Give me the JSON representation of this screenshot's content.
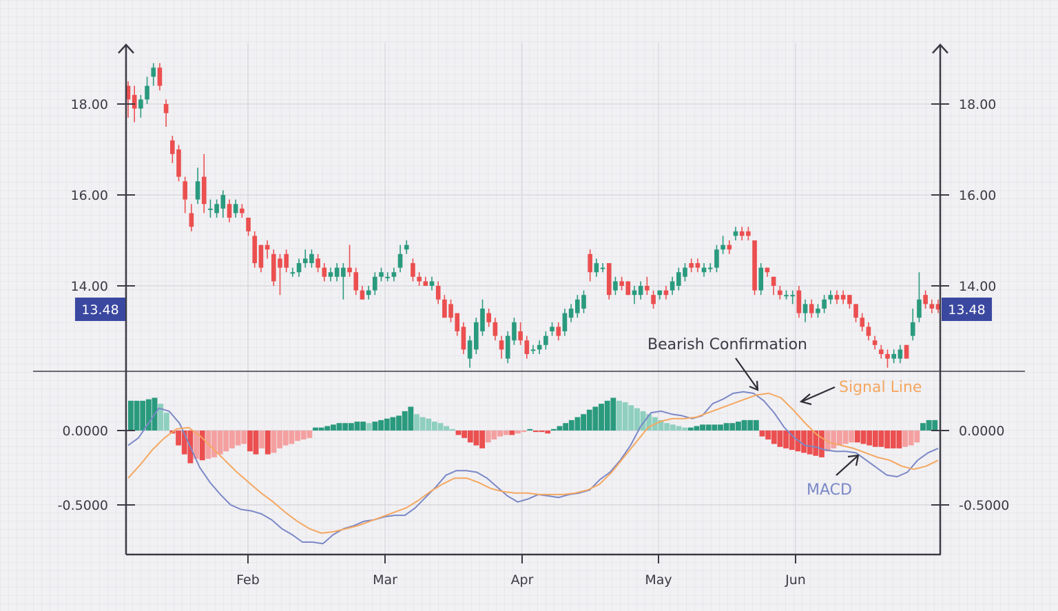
{
  "chart_data": [
    {
      "type": "candlestick",
      "title": "",
      "xlabel": "",
      "ylabel": "",
      "ylim": [
        12.0,
        19.2
      ],
      "y_ticks": [
        "18.00",
        "16.00",
        "14.00"
      ],
      "x_ticks": [
        "Feb",
        "Mar",
        "Apr",
        "May",
        "Jun"
      ],
      "last_price_label": "13.48",
      "grid": true,
      "candles": [
        {
          "o": 18.4,
          "c": 18.1,
          "h": 18.5,
          "l": 17.7
        },
        {
          "o": 18.2,
          "c": 17.9,
          "h": 18.4,
          "l": 17.6
        },
        {
          "o": 17.9,
          "c": 18.1,
          "h": 18.2,
          "l": 17.7
        },
        {
          "o": 18.1,
          "c": 18.4,
          "h": 18.6,
          "l": 18.0
        },
        {
          "o": 18.6,
          "c": 18.8,
          "h": 18.9,
          "l": 18.4
        },
        {
          "o": 18.8,
          "c": 18.4,
          "h": 18.9,
          "l": 18.3
        },
        {
          "o": 18.0,
          "c": 17.8,
          "h": 18.1,
          "l": 17.5
        },
        {
          "o": 17.2,
          "c": 16.9,
          "h": 17.3,
          "l": 16.7
        },
        {
          "o": 17.0,
          "c": 16.4,
          "h": 17.1,
          "l": 16.3
        },
        {
          "o": 16.3,
          "c": 15.9,
          "h": 16.4,
          "l": 15.6
        },
        {
          "o": 15.6,
          "c": 15.3,
          "h": 15.8,
          "l": 15.2
        },
        {
          "o": 15.9,
          "c": 16.3,
          "h": 16.6,
          "l": 15.8
        },
        {
          "o": 16.4,
          "c": 15.8,
          "h": 16.9,
          "l": 15.6
        },
        {
          "o": 15.7,
          "c": 15.7,
          "h": 15.9,
          "l": 15.5
        },
        {
          "o": 15.6,
          "c": 15.8,
          "h": 15.9,
          "l": 15.5
        },
        {
          "o": 15.7,
          "c": 16.0,
          "h": 16.1,
          "l": 15.5
        },
        {
          "o": 15.8,
          "c": 15.5,
          "h": 15.9,
          "l": 15.4
        },
        {
          "o": 15.6,
          "c": 15.8,
          "h": 15.9,
          "l": 15.5
        },
        {
          "o": 15.7,
          "c": 15.6,
          "h": 15.8,
          "l": 15.5
        },
        {
          "o": 15.5,
          "c": 15.2,
          "h": 15.5,
          "l": 15.1
        },
        {
          "o": 15.1,
          "c": 14.5,
          "h": 15.2,
          "l": 14.4
        },
        {
          "o": 14.9,
          "c": 14.4,
          "h": 14.9,
          "l": 14.3
        },
        {
          "o": 14.9,
          "c": 14.8,
          "h": 15.0,
          "l": 14.6
        },
        {
          "o": 14.7,
          "c": 14.1,
          "h": 14.8,
          "l": 14.0
        },
        {
          "o": 14.6,
          "c": 14.4,
          "h": 14.7,
          "l": 13.8
        },
        {
          "o": 14.7,
          "c": 14.4,
          "h": 14.8,
          "l": 14.3
        },
        {
          "o": 14.3,
          "c": 14.3,
          "h": 14.4,
          "l": 14.2
        },
        {
          "o": 14.3,
          "c": 14.5,
          "h": 14.6,
          "l": 14.2
        },
        {
          "o": 14.5,
          "c": 14.6,
          "h": 14.8,
          "l": 14.4
        },
        {
          "o": 14.5,
          "c": 14.7,
          "h": 14.8,
          "l": 14.4
        },
        {
          "o": 14.6,
          "c": 14.4,
          "h": 14.7,
          "l": 14.3
        },
        {
          "o": 14.4,
          "c": 14.2,
          "h": 14.5,
          "l": 14.1
        },
        {
          "o": 14.2,
          "c": 14.3,
          "h": 14.4,
          "l": 14.1
        },
        {
          "o": 14.2,
          "c": 14.4,
          "h": 14.5,
          "l": 14.1
        },
        {
          "o": 14.2,
          "c": 14.4,
          "h": 14.5,
          "l": 13.7
        },
        {
          "o": 14.4,
          "c": 14.3,
          "h": 14.9,
          "l": 14.2
        },
        {
          "o": 14.3,
          "c": 13.9,
          "h": 14.4,
          "l": 13.8
        },
        {
          "o": 13.9,
          "c": 13.7,
          "h": 14.0,
          "l": 13.7
        },
        {
          "o": 13.8,
          "c": 13.9,
          "h": 14.0,
          "l": 13.7
        },
        {
          "o": 13.9,
          "c": 14.2,
          "h": 14.3,
          "l": 13.8
        },
        {
          "o": 14.2,
          "c": 14.3,
          "h": 14.4,
          "l": 14.1
        },
        {
          "o": 14.2,
          "c": 14.2,
          "h": 14.3,
          "l": 14.1
        },
        {
          "o": 14.2,
          "c": 14.3,
          "h": 14.4,
          "l": 14.1
        },
        {
          "o": 14.4,
          "c": 14.7,
          "h": 14.9,
          "l": 14.3
        },
        {
          "o": 14.8,
          "c": 14.9,
          "h": 15.0,
          "l": 14.7
        },
        {
          "o": 14.5,
          "c": 14.2,
          "h": 14.6,
          "l": 14.1
        },
        {
          "o": 14.2,
          "c": 14.1,
          "h": 14.3,
          "l": 14.0
        },
        {
          "o": 14.1,
          "c": 14.0,
          "h": 14.2,
          "l": 14.0
        },
        {
          "o": 14.0,
          "c": 14.1,
          "h": 14.2,
          "l": 13.9
        },
        {
          "o": 14.0,
          "c": 13.7,
          "h": 14.1,
          "l": 13.6
        },
        {
          "o": 13.7,
          "c": 13.3,
          "h": 13.8,
          "l": 13.3
        },
        {
          "o": 13.6,
          "c": 13.3,
          "h": 13.7,
          "l": 13.2
        },
        {
          "o": 13.4,
          "c": 13.0,
          "h": 13.4,
          "l": 12.9
        },
        {
          "o": 13.1,
          "c": 12.6,
          "h": 13.2,
          "l": 12.5
        },
        {
          "o": 12.4,
          "c": 12.8,
          "h": 12.9,
          "l": 12.2
        },
        {
          "o": 12.6,
          "c": 13.2,
          "h": 13.3,
          "l": 12.5
        },
        {
          "o": 13.0,
          "c": 13.5,
          "h": 13.7,
          "l": 12.9
        },
        {
          "o": 13.4,
          "c": 13.2,
          "h": 13.5,
          "l": 13.1
        },
        {
          "o": 13.2,
          "c": 12.9,
          "h": 13.3,
          "l": 12.8
        },
        {
          "o": 12.8,
          "c": 12.6,
          "h": 12.9,
          "l": 12.4
        },
        {
          "o": 12.4,
          "c": 12.9,
          "h": 13.0,
          "l": 12.3
        },
        {
          "o": 12.8,
          "c": 13.2,
          "h": 13.3,
          "l": 12.7
        },
        {
          "o": 13.0,
          "c": 12.8,
          "h": 13.2,
          "l": 12.7
        },
        {
          "o": 12.8,
          "c": 12.5,
          "h": 12.9,
          "l": 12.4
        },
        {
          "o": 12.6,
          "c": 12.6,
          "h": 12.7,
          "l": 12.5
        },
        {
          "o": 12.6,
          "c": 12.7,
          "h": 12.8,
          "l": 12.5
        },
        {
          "o": 12.7,
          "c": 12.9,
          "h": 13.0,
          "l": 12.6
        },
        {
          "o": 13.0,
          "c": 13.1,
          "h": 13.2,
          "l": 12.9
        },
        {
          "o": 13.1,
          "c": 12.9,
          "h": 13.2,
          "l": 12.8
        },
        {
          "o": 13.0,
          "c": 13.4,
          "h": 13.5,
          "l": 12.9
        },
        {
          "o": 13.3,
          "c": 13.5,
          "h": 13.6,
          "l": 13.2
        },
        {
          "o": 13.4,
          "c": 13.7,
          "h": 13.8,
          "l": 13.3
        },
        {
          "o": 13.5,
          "c": 13.8,
          "h": 13.9,
          "l": 13.4
        },
        {
          "o": 14.7,
          "c": 14.3,
          "h": 14.8,
          "l": 14.1
        },
        {
          "o": 14.3,
          "c": 14.5,
          "h": 14.6,
          "l": 14.2
        },
        {
          "o": 14.4,
          "c": 14.4,
          "h": 14.5,
          "l": 14.3
        },
        {
          "o": 14.5,
          "c": 13.8,
          "h": 14.5,
          "l": 13.7
        },
        {
          "o": 13.9,
          "c": 14.1,
          "h": 14.2,
          "l": 13.8
        },
        {
          "o": 14.1,
          "c": 14.0,
          "h": 14.2,
          "l": 13.9
        },
        {
          "o": 14.1,
          "c": 13.8,
          "h": 14.1,
          "l": 13.8
        },
        {
          "o": 13.8,
          "c": 13.9,
          "h": 14.0,
          "l": 13.6
        },
        {
          "o": 13.8,
          "c": 14.0,
          "h": 14.1,
          "l": 13.7
        },
        {
          "o": 14.0,
          "c": 13.9,
          "h": 14.2,
          "l": 13.8
        },
        {
          "o": 13.8,
          "c": 13.6,
          "h": 13.9,
          "l": 13.5
        },
        {
          "o": 13.8,
          "c": 13.9,
          "h": 13.9,
          "l": 13.7
        },
        {
          "o": 13.9,
          "c": 13.8,
          "h": 14.0,
          "l": 13.7
        },
        {
          "o": 13.9,
          "c": 14.1,
          "h": 14.2,
          "l": 13.8
        },
        {
          "o": 14.0,
          "c": 14.3,
          "h": 14.4,
          "l": 13.9
        },
        {
          "o": 14.2,
          "c": 14.4,
          "h": 14.5,
          "l": 14.1
        },
        {
          "o": 14.5,
          "c": 14.4,
          "h": 14.6,
          "l": 14.3
        },
        {
          "o": 14.5,
          "c": 14.4,
          "h": 14.6,
          "l": 14.3
        },
        {
          "o": 14.3,
          "c": 14.4,
          "h": 14.5,
          "l": 14.2
        },
        {
          "o": 14.4,
          "c": 14.4,
          "h": 14.5,
          "l": 14.3
        },
        {
          "o": 14.4,
          "c": 14.8,
          "h": 14.9,
          "l": 14.3
        },
        {
          "o": 14.8,
          "c": 14.9,
          "h": 15.1,
          "l": 14.7
        },
        {
          "o": 14.9,
          "c": 14.8,
          "h": 15.0,
          "l": 14.7
        },
        {
          "o": 15.1,
          "c": 15.2,
          "h": 15.3,
          "l": 15.0
        },
        {
          "o": 15.2,
          "c": 15.1,
          "h": 15.3,
          "l": 15.0
        },
        {
          "o": 15.2,
          "c": 15.1,
          "h": 15.3,
          "l": 15.0
        },
        {
          "o": 15.0,
          "c": 13.9,
          "h": 15.0,
          "l": 13.8
        },
        {
          "o": 13.9,
          "c": 14.4,
          "h": 14.5,
          "l": 13.8
        },
        {
          "o": 14.4,
          "c": 14.3,
          "h": 14.4,
          "l": 14.2
        },
        {
          "o": 14.2,
          "c": 14.0,
          "h": 14.2,
          "l": 13.8
        },
        {
          "o": 13.9,
          "c": 13.8,
          "h": 14.0,
          "l": 13.7
        },
        {
          "o": 13.8,
          "c": 13.8,
          "h": 13.9,
          "l": 13.7
        },
        {
          "o": 13.8,
          "c": 13.8,
          "h": 13.9,
          "l": 13.6
        },
        {
          "o": 13.9,
          "c": 13.4,
          "h": 14.0,
          "l": 13.3
        },
        {
          "o": 13.4,
          "c": 13.6,
          "h": 13.7,
          "l": 13.2
        },
        {
          "o": 13.6,
          "c": 13.4,
          "h": 13.7,
          "l": 13.3
        },
        {
          "o": 13.4,
          "c": 13.5,
          "h": 13.6,
          "l": 13.3
        },
        {
          "o": 13.5,
          "c": 13.7,
          "h": 13.8,
          "l": 13.4
        },
        {
          "o": 13.7,
          "c": 13.8,
          "h": 13.9,
          "l": 13.6
        },
        {
          "o": 13.8,
          "c": 13.7,
          "h": 13.9,
          "l": 13.6
        },
        {
          "o": 13.8,
          "c": 13.7,
          "h": 13.9,
          "l": 13.6
        },
        {
          "o": 13.8,
          "c": 13.6,
          "h": 13.8,
          "l": 13.5
        },
        {
          "o": 13.6,
          "c": 13.3,
          "h": 13.6,
          "l": 13.2
        },
        {
          "o": 13.3,
          "c": 13.1,
          "h": 13.4,
          "l": 13.0
        },
        {
          "o": 13.1,
          "c": 12.9,
          "h": 13.2,
          "l": 12.8
        },
        {
          "o": 12.8,
          "c": 12.7,
          "h": 12.9,
          "l": 12.6
        },
        {
          "o": 12.6,
          "c": 12.5,
          "h": 12.7,
          "l": 12.4
        },
        {
          "o": 12.5,
          "c": 12.4,
          "h": 12.6,
          "l": 12.2
        },
        {
          "o": 12.4,
          "c": 12.5,
          "h": 12.6,
          "l": 12.3
        },
        {
          "o": 12.4,
          "c": 12.6,
          "h": 12.7,
          "l": 12.3
        },
        {
          "o": 12.7,
          "c": 12.4,
          "h": 12.7,
          "l": 12.4
        },
        {
          "o": 12.9,
          "c": 13.2,
          "h": 13.5,
          "l": 12.8
        },
        {
          "o": 13.3,
          "c": 13.7,
          "h": 14.3,
          "l": 13.2
        },
        {
          "o": 13.8,
          "c": 13.6,
          "h": 13.9,
          "l": 13.5
        },
        {
          "o": 13.6,
          "c": 13.5,
          "h": 13.7,
          "l": 13.4
        },
        {
          "o": 13.6,
          "c": 13.48,
          "h": 13.7,
          "l": 13.4
        }
      ]
    },
    {
      "type": "macd",
      "title": "",
      "ylim": [
        -0.85,
        0.4
      ],
      "y_ticks": [
        "0.0000",
        "-0.5000"
      ],
      "y_tick_values": [
        0.0,
        -0.5
      ],
      "series": [
        {
          "name": "MACD",
          "color": "#7a88c6",
          "values": [
            -0.1,
            -0.05,
            0.05,
            0.15,
            0.13,
            0.05,
            -0.1,
            -0.25,
            -0.35,
            -0.43,
            -0.5,
            -0.53,
            -0.54,
            -0.56,
            -0.6,
            -0.66,
            -0.7,
            -0.75,
            -0.75,
            -0.76,
            -0.7,
            -0.66,
            -0.64,
            -0.61,
            -0.6,
            -0.58,
            -0.57,
            -0.57,
            -0.52,
            -0.45,
            -0.38,
            -0.3,
            -0.27,
            -0.27,
            -0.28,
            -0.32,
            -0.38,
            -0.44,
            -0.48,
            -0.46,
            -0.43,
            -0.44,
            -0.45,
            -0.43,
            -0.42,
            -0.4,
            -0.33,
            -0.28,
            -0.2,
            -0.1,
            0.03,
            0.12,
            0.13,
            0.11,
            0.1,
            0.08,
            0.1,
            0.18,
            0.21,
            0.25,
            0.26,
            0.25,
            0.2,
            0.12,
            0.02,
            -0.05,
            -0.1,
            -0.11,
            -0.13,
            -0.14,
            -0.14,
            -0.15,
            -0.2,
            -0.25,
            -0.3,
            -0.31,
            -0.28,
            -0.2,
            -0.15,
            -0.12
          ]
        },
        {
          "name": "Signal Line",
          "color": "#f4a760",
          "values": [
            -0.32,
            -0.23,
            -0.13,
            -0.05,
            0.01,
            0.02,
            -0.04,
            -0.12,
            -0.2,
            -0.28,
            -0.35,
            -0.42,
            -0.48,
            -0.55,
            -0.61,
            -0.66,
            -0.69,
            -0.68,
            -0.66,
            -0.64,
            -0.61,
            -0.58,
            -0.55,
            -0.52,
            -0.47,
            -0.41,
            -0.36,
            -0.32,
            -0.32,
            -0.35,
            -0.39,
            -0.41,
            -0.42,
            -0.42,
            -0.43,
            -0.43,
            -0.43,
            -0.42,
            -0.4,
            -0.36,
            -0.28,
            -0.18,
            -0.08,
            0.02,
            0.06,
            0.08,
            0.08,
            0.09,
            0.12,
            0.15,
            0.18,
            0.21,
            0.24,
            0.25,
            0.22,
            0.14,
            0.05,
            -0.03,
            -0.08,
            -0.1,
            -0.12,
            -0.15,
            -0.18,
            -0.2,
            -0.24,
            -0.26,
            -0.24,
            -0.2
          ]
        },
        {
          "name": "Histogram",
          "values": [
            0.2,
            0.2,
            0.2,
            0.21,
            0.22,
            0.18,
            0.12,
            -0.02,
            -0.1,
            -0.16,
            -0.22,
            -0.19,
            -0.2,
            -0.19,
            -0.18,
            -0.16,
            -0.14,
            -0.12,
            -0.1,
            -0.09,
            -0.14,
            -0.16,
            -0.12,
            -0.16,
            -0.15,
            -0.12,
            -0.1,
            -0.09,
            -0.07,
            -0.06,
            -0.05,
            0.02,
            0.02,
            0.03,
            0.04,
            0.05,
            0.05,
            0.05,
            0.06,
            0.06,
            0.05,
            0.06,
            0.07,
            0.08,
            0.09,
            0.1,
            0.13,
            0.16,
            0.11,
            0.09,
            0.08,
            0.06,
            0.05,
            0.03,
            0.01,
            -0.03,
            -0.05,
            -0.08,
            -0.1,
            -0.12,
            -0.08,
            -0.06,
            -0.04,
            -0.03,
            -0.03,
            -0.02,
            -0.01,
            0.01,
            -0.01,
            -0.01,
            -0.02,
            0.01,
            0.03,
            0.05,
            0.07,
            0.09,
            0.11,
            0.14,
            0.16,
            0.18,
            0.2,
            0.22,
            0.2,
            0.19,
            0.17,
            0.15,
            0.13,
            0.11,
            0.09,
            0.07,
            0.05,
            0.04,
            0.03,
            0.02,
            0.02,
            0.03,
            0.04,
            0.04,
            0.04,
            0.04,
            0.05,
            0.05,
            0.06,
            0.07,
            0.07,
            0.07,
            -0.04,
            -0.06,
            -0.09,
            -0.11,
            -0.12,
            -0.13,
            -0.14,
            -0.15,
            -0.16,
            -0.17,
            -0.18,
            -0.14,
            -0.12,
            -0.1,
            -0.09,
            -0.08,
            -0.08,
            -0.09,
            -0.1,
            -0.11,
            -0.11,
            -0.12,
            -0.12,
            -0.12,
            -0.11,
            -0.1,
            -0.08,
            0.05,
            0.07,
            0.07
          ]
        }
      ],
      "annotations": [
        "Bearish Confirmation",
        "Signal Line",
        "MACD"
      ]
    }
  ],
  "colors": {
    "bull": "#2a9a7e",
    "bear": "#eb4f4f",
    "bull_light": "#8fcfbf",
    "bear_light": "#f4a0a0",
    "badge": "#3b48a0",
    "axis": "#3a3a44"
  }
}
